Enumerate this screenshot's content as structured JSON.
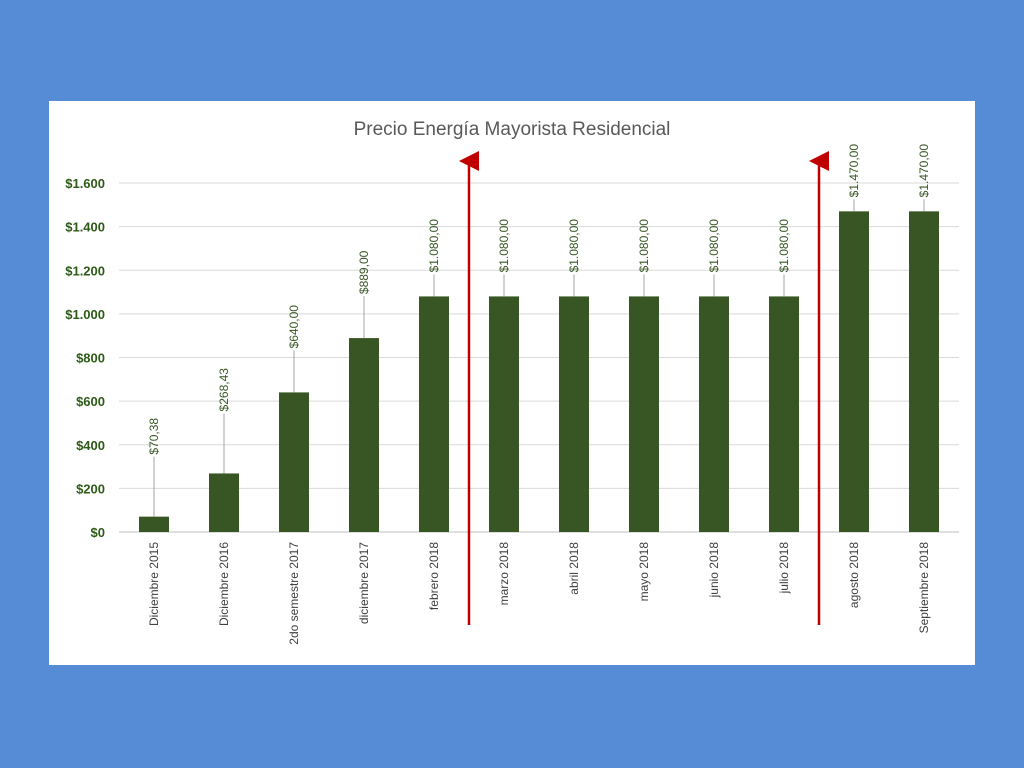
{
  "chart_data": {
    "type": "bar",
    "title": "Precio Energía Mayorista Residencial",
    "categories": [
      "Diciembre 2015",
      "Diciembre 2016",
      "2do semestre 2017",
      "diciembre 2017",
      "febrero 2018",
      "marzo 2018",
      "abril 2018",
      "mayo 2018",
      "junio 2018",
      "julio 2018",
      "agosto 2018",
      "Septiembre 2018"
    ],
    "values": [
      70.38,
      268.43,
      640.0,
      889.0,
      1080.0,
      1080.0,
      1080.0,
      1080.0,
      1080.0,
      1080.0,
      1470.0,
      1470.0
    ],
    "data_labels": [
      "$70,38",
      "$268,43",
      "$640,00",
      "$889,00",
      "$1.080,00",
      "$1.080,00",
      "$1.080,00",
      "$1.080,00",
      "$1.080,00",
      "$1.080,00",
      "$1.470,00",
      "$1.470,00"
    ],
    "yticks": [
      0,
      200,
      400,
      600,
      800,
      1000,
      1200,
      1400,
      1600
    ],
    "ytick_labels": [
      "$0",
      "$200",
      "$400",
      "$600",
      "$800",
      "$1.000",
      "$1.200",
      "$1.400",
      "$1.600"
    ],
    "ylim": [
      0,
      1600
    ],
    "grid": true,
    "bar_color": "#375623",
    "marker_color": "#c00000",
    "markers_after_categories": [
      "febrero 2018",
      "julio 2018"
    ]
  }
}
